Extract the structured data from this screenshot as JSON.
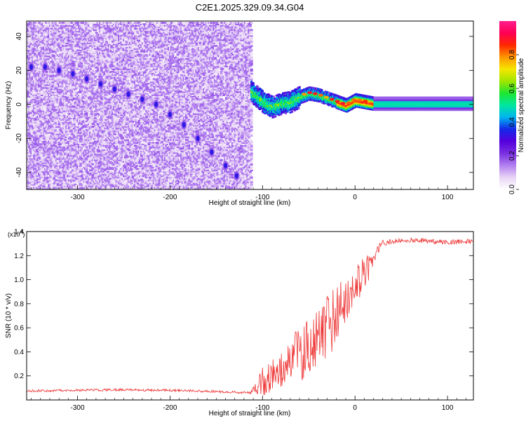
{
  "chart_data": [
    {
      "type": "heatmap",
      "title": "C2E1.2025.329.09.34.G04",
      "xlabel": "Height of straight line (km)",
      "ylabel": "Frequency (Hz)",
      "xlim": [
        -355,
        128
      ],
      "ylim": [
        -50,
        49
      ],
      "xticks": [
        -300,
        -200,
        -100,
        0,
        100
      ],
      "yticks": [
        -40,
        -20,
        0,
        20,
        40
      ],
      "colorbar": {
        "label": "Normalized spectral amplitude",
        "range": [
          0,
          1
        ],
        "ticks": [
          0.0,
          0.2,
          0.4,
          0.6,
          0.8
        ],
        "colormap": [
          "#ffffff",
          "#e8d4f5",
          "#b27ff0",
          "#7a30e0",
          "#5500dd",
          "#1428e8",
          "#00b4f0",
          "#00e6a0",
          "#1ee632",
          "#a0e600",
          "#f5e600",
          "#ff9600",
          "#ff2800",
          "#ff0055",
          "#ff1e8c"
        ]
      },
      "noise_region": {
        "x_range": [
          -355,
          -113
        ],
        "y_range": [
          -50,
          49
        ]
      },
      "track_region": {
        "x_range": [
          -113,
          128
        ]
      },
      "track": {
        "x": [
          -113,
          -100,
          -90,
          -80,
          -70,
          -60,
          -50,
          -40,
          -30,
          -20,
          -10,
          0,
          10,
          20,
          40,
          60,
          80,
          100,
          128
        ],
        "freq": [
          8,
          2,
          -1,
          1,
          2,
          5,
          7,
          6,
          4,
          2,
          0,
          3,
          2,
          1,
          1,
          1,
          1,
          1,
          1
        ]
      },
      "tilted_streak": {
        "x": [
          -350,
          -335,
          -320,
          -305,
          -290,
          -275,
          -260,
          -245,
          -230,
          -215,
          -200,
          -185,
          -170,
          -155,
          -140,
          -128
        ],
        "freq": [
          22,
          22,
          20,
          18,
          15,
          12,
          9,
          6,
          3,
          0,
          -6,
          -12,
          -20,
          -28,
          -36,
          -42
        ]
      }
    },
    {
      "type": "line",
      "xlabel": "Height of straight line (km)",
      "ylabel": "SNR (10 * v/v)",
      "scale_label": "(x10",
      "scale_exponent": "4",
      "xlim": [
        -355,
        128
      ],
      "ylim": [
        0,
        1.4
      ],
      "xticks": [
        -300,
        -200,
        -100,
        0,
        100
      ],
      "yticks": [
        0.2,
        0.4,
        0.6,
        0.8,
        1.0,
        1.2,
        1.4
      ],
      "series": [
        {
          "name": "SNR",
          "color": "#ee3333",
          "x": [
            -355,
            -300,
            -250,
            -200,
            -150,
            -113,
            -100,
            -90,
            -80,
            -70,
            -60,
            -50,
            -40,
            -30,
            -20,
            -10,
            0,
            10,
            15,
            20,
            30,
            40,
            60,
            80,
            100,
            128
          ],
          "mean": [
            0.075,
            0.08,
            0.085,
            0.08,
            0.07,
            0.06,
            0.15,
            0.2,
            0.25,
            0.3,
            0.38,
            0.45,
            0.52,
            0.6,
            0.72,
            0.85,
            0.95,
            1.05,
            1.1,
            1.2,
            1.3,
            1.32,
            1.33,
            1.32,
            1.31,
            1.32
          ],
          "spread": [
            0.01,
            0.01,
            0.01,
            0.01,
            0.01,
            0.01,
            0.12,
            0.14,
            0.15,
            0.2,
            0.24,
            0.24,
            0.22,
            0.3,
            0.22,
            0.2,
            0.15,
            0.18,
            0.1,
            0.06,
            0.03,
            0.02,
            0.02,
            0.02,
            0.02,
            0.02
          ]
        }
      ]
    }
  ]
}
